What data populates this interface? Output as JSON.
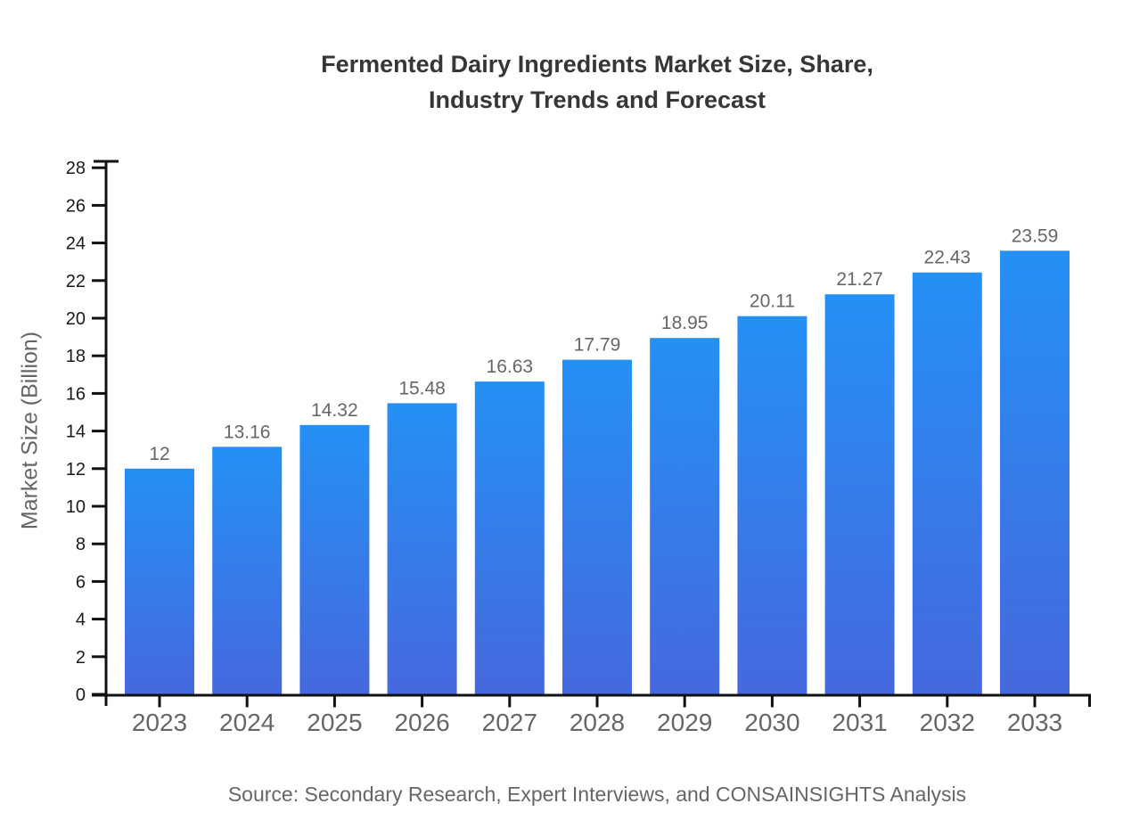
{
  "title": "Fermented Dairy Ingredients Market Size, Share,\nIndustry Trends and Forecast",
  "source_note": "Source: Secondary Research, Expert Interviews, and CONSAINSIGHTS Analysis",
  "chart_data": {
    "type": "bar",
    "title": "Fermented Dairy Ingredients Market Size, Share, Industry Trends and Forecast",
    "categories": [
      "2023",
      "2024",
      "2025",
      "2026",
      "2027",
      "2028",
      "2029",
      "2030",
      "2031",
      "2032",
      "2033"
    ],
    "values": [
      12,
      13.16,
      14.32,
      15.48,
      16.63,
      17.79,
      18.95,
      20.11,
      21.27,
      22.43,
      23.59
    ],
    "value_labels": [
      "12",
      "13.16",
      "14.32",
      "15.48",
      "16.63",
      "17.79",
      "18.95",
      "20.11",
      "21.27",
      "22.43",
      "23.59"
    ],
    "xlabel": "",
    "ylabel": "Market Size (Billion)",
    "ylim": [
      0,
      28
    ],
    "ytick_step": 2,
    "grid": false,
    "legend": "none",
    "colors": {
      "bar_gradient_top": "#2490F5",
      "bar_gradient_bottom": "#4668DE",
      "axis": "#111111",
      "y_tick_label": "#1a1a1a",
      "category_label": "#666666",
      "value_label": "#666666",
      "title": "#363636",
      "muted_text": "#666666",
      "background": "#ffffff"
    }
  }
}
